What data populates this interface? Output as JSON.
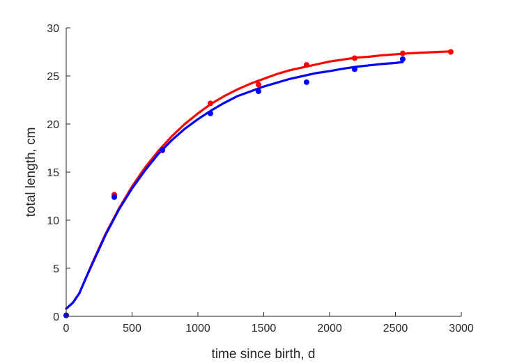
{
  "chart_data": {
    "type": "scatter",
    "title": "",
    "xlabel": "time since birth, d",
    "ylabel": "total length, cm",
    "xlim": [
      0,
      3000
    ],
    "ylim": [
      0,
      30
    ],
    "xticks": [
      "0",
      "500",
      "1000",
      "1500",
      "2000",
      "2500",
      "3000"
    ],
    "yticks": [
      "0",
      "5",
      "10",
      "15",
      "20",
      "25",
      "30"
    ],
    "grid": false,
    "series": [
      {
        "kind": "points",
        "color": "#ff0000",
        "x": [
          0,
          365,
          730,
          1095,
          1460,
          1825,
          2190,
          2555,
          2920
        ],
        "y": [
          0.1,
          12.65,
          17.25,
          22.15,
          24.1,
          26.15,
          26.85,
          27.35,
          27.5
        ]
      },
      {
        "kind": "points",
        "color": "#0000ff",
        "x": [
          0,
          365,
          730,
          1095,
          1460,
          1825,
          2190,
          2555
        ],
        "y": [
          0.1,
          12.4,
          17.3,
          21.1,
          23.4,
          24.35,
          25.7,
          26.75
        ]
      },
      {
        "kind": "line",
        "color": "#ff0000",
        "x": [
          0,
          50,
          100,
          150,
          200,
          300,
          400,
          500,
          600,
          700,
          800,
          900,
          1000,
          1100,
          1200,
          1300,
          1400,
          1500,
          1600,
          1700,
          1800,
          1900,
          2000,
          2100,
          2200,
          2300,
          2400,
          2500,
          2600,
          2700,
          2800,
          2920
        ],
        "y": [
          0.8,
          1.4,
          2.4,
          4.0,
          5.6,
          8.6,
          11.2,
          13.5,
          15.5,
          17.2,
          18.7,
          20.0,
          21.1,
          22.1,
          22.9,
          23.6,
          24.2,
          24.7,
          25.2,
          25.6,
          25.9,
          26.2,
          26.5,
          26.7,
          26.9,
          27.0,
          27.15,
          27.25,
          27.35,
          27.42,
          27.48,
          27.55
        ]
      },
      {
        "kind": "line",
        "color": "#0000ff",
        "x": [
          0,
          50,
          100,
          150,
          200,
          300,
          400,
          500,
          600,
          700,
          800,
          900,
          1000,
          1100,
          1200,
          1300,
          1400,
          1500,
          1600,
          1700,
          1800,
          1900,
          2000,
          2100,
          2200,
          2300,
          2400,
          2500,
          2555
        ],
        "y": [
          0.8,
          1.4,
          2.4,
          4.0,
          5.5,
          8.5,
          11.1,
          13.3,
          15.2,
          16.9,
          18.3,
          19.5,
          20.5,
          21.4,
          22.2,
          22.9,
          23.4,
          23.9,
          24.3,
          24.7,
          25.0,
          25.3,
          25.5,
          25.75,
          25.95,
          26.1,
          26.25,
          26.35,
          26.45
        ]
      }
    ]
  }
}
